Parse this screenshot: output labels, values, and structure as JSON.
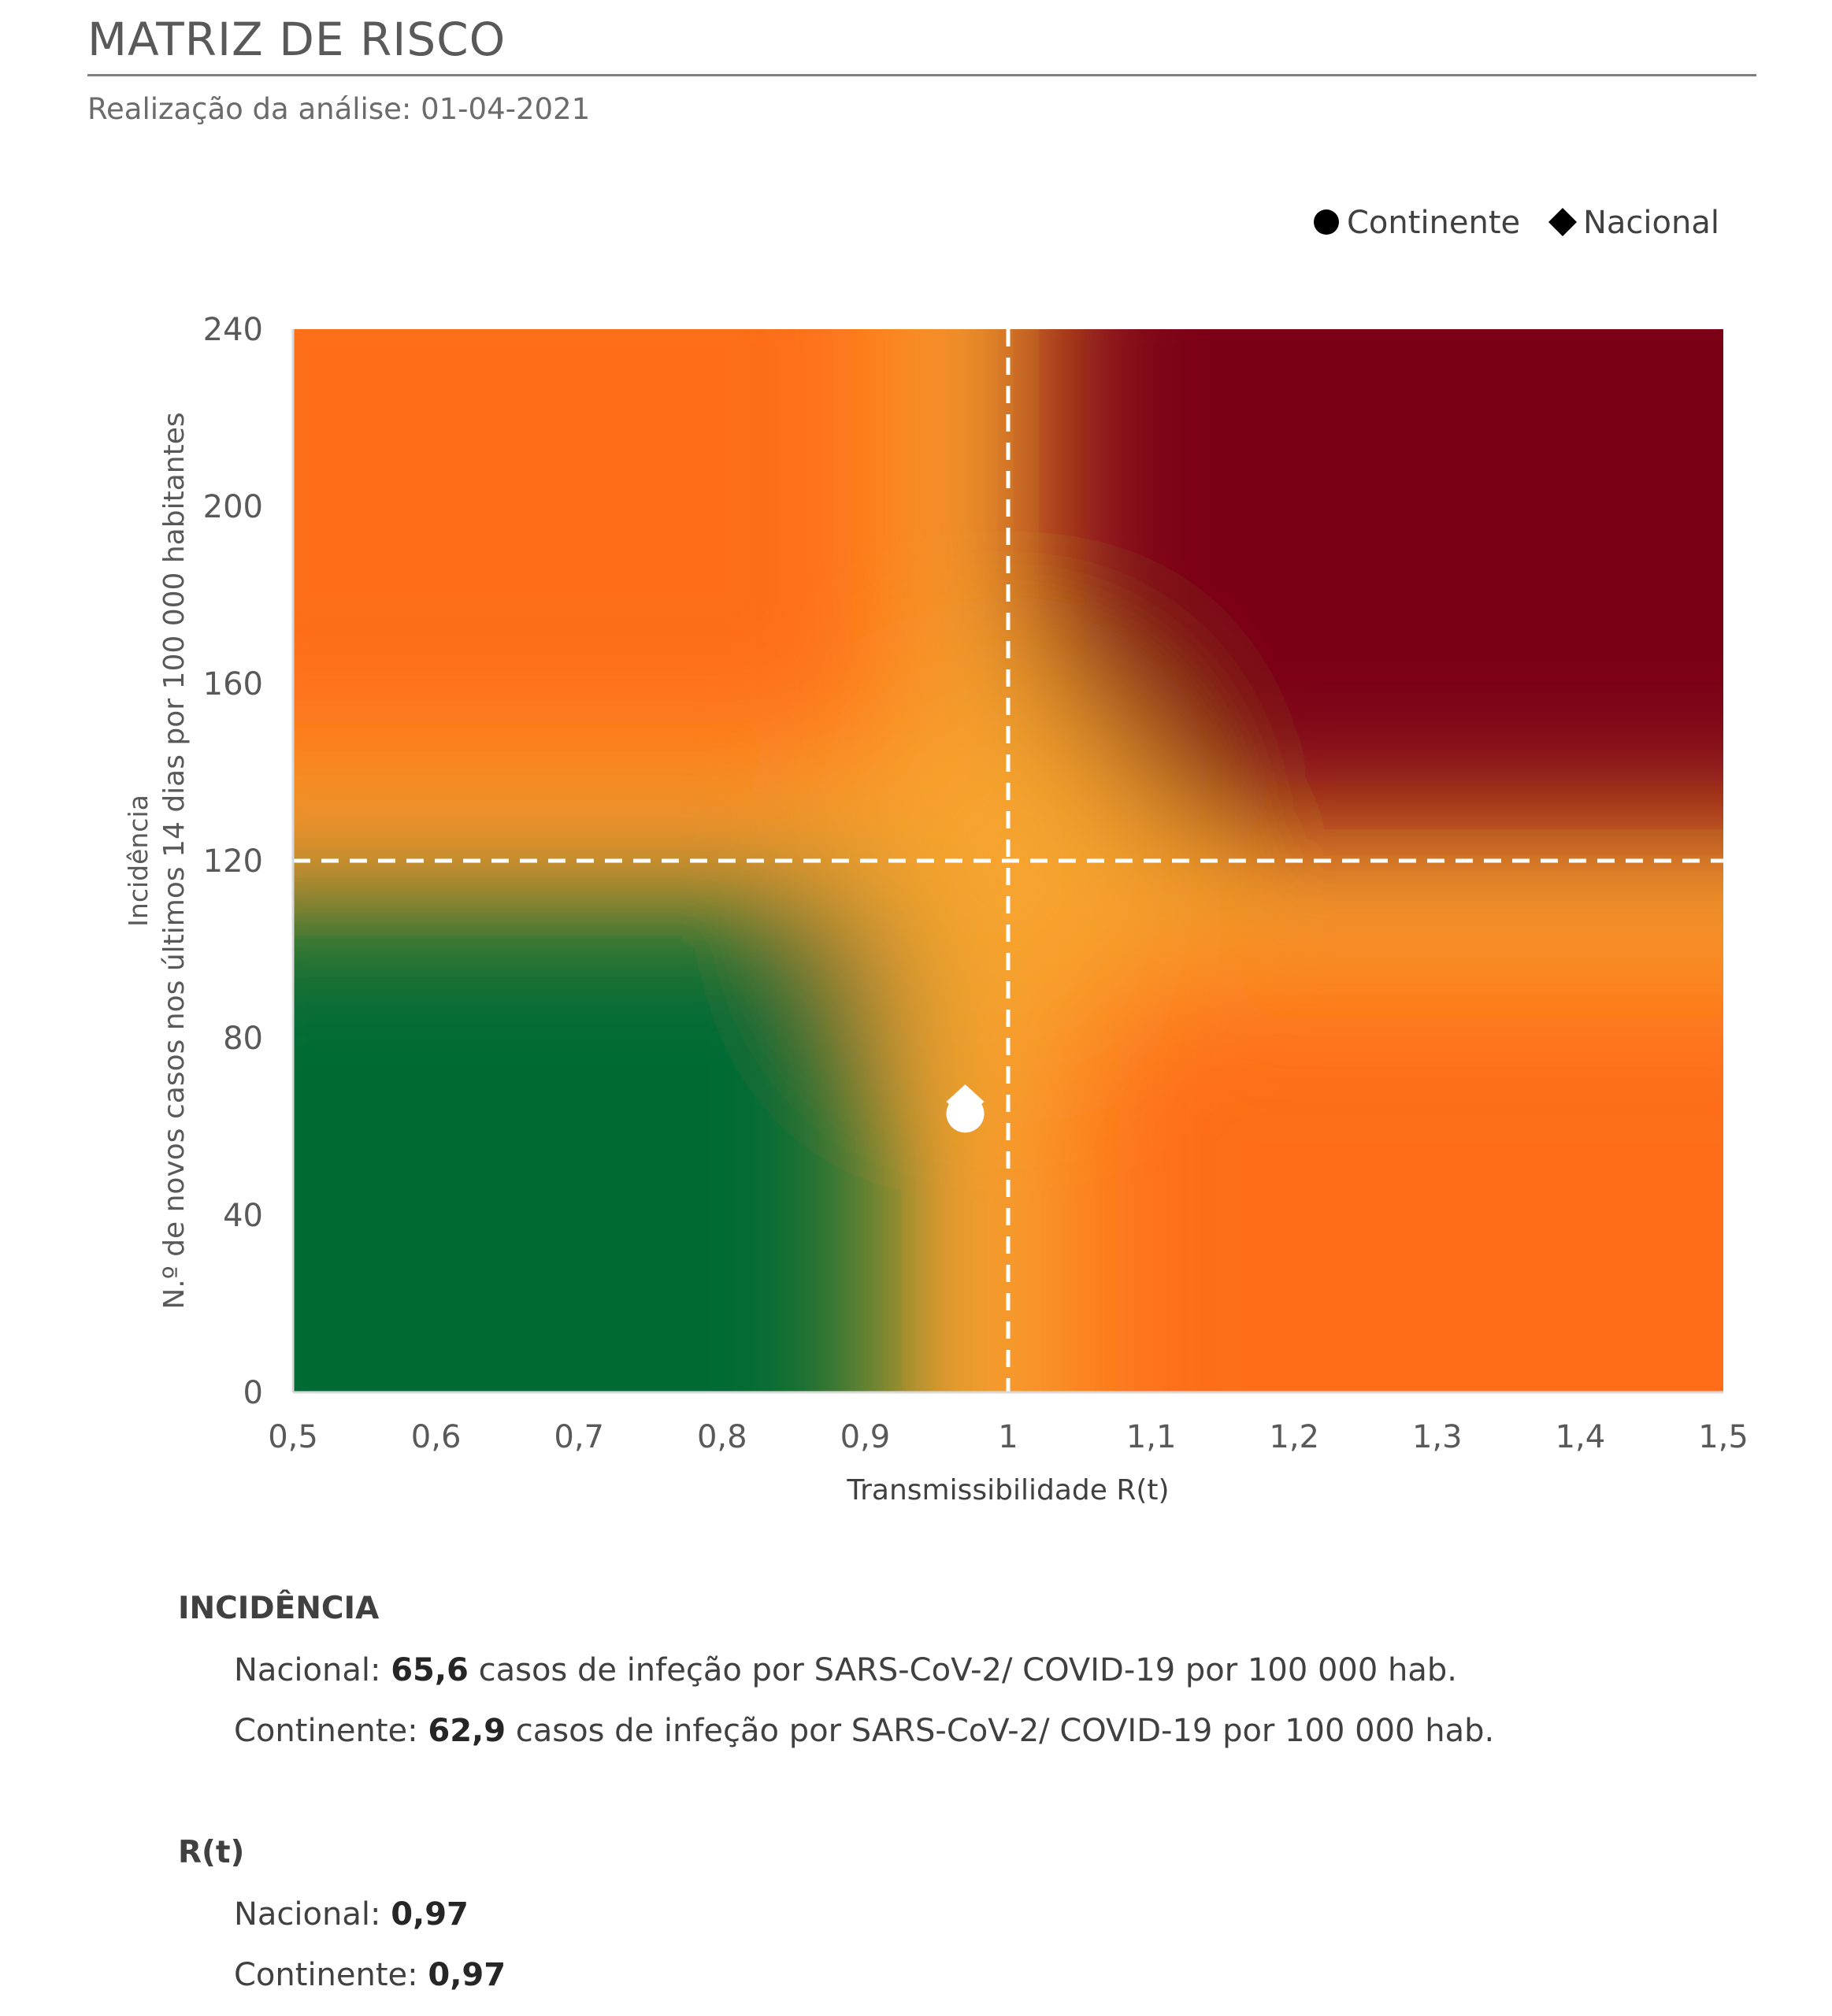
{
  "header": {
    "title": "MATRIZ DE RISCO",
    "subtitle": "Realização da análise: 01-04-2021"
  },
  "chart_data": {
    "type": "scatter",
    "xlabel": "Transmissibilidade R(t)",
    "ylabel_lines": [
      "Incidência",
      "N.º de novos casos nos últimos 14 dias por 100 000 habitantes"
    ],
    "xlim": [
      0.5,
      1.5
    ],
    "ylim": [
      0,
      240
    ],
    "x_ticks": [
      "0,5",
      "0,6",
      "0,7",
      "0,8",
      "0,9",
      "1",
      "1,1",
      "1,2",
      "1,3",
      "1,4",
      "1,5"
    ],
    "y_ticks": [
      "0",
      "40",
      "80",
      "120",
      "160",
      "200",
      "240"
    ],
    "thresholds": {
      "x": 1,
      "y": 120
    },
    "legend_position": "top-right",
    "series": [
      {
        "name": "Continente",
        "marker": "circle",
        "x": 0.97,
        "y": 62.9
      },
      {
        "name": "Nacional",
        "marker": "diamond",
        "x": 0.97,
        "y": 65.6
      }
    ],
    "colors": {
      "green": "#006b35",
      "yellow": "#f7a42d",
      "orange": "#ff6a13",
      "darkred": "#7a0018",
      "marker": "#ffffff",
      "threshold": "#ffffff",
      "legend_marker": "#000000"
    }
  },
  "incidencia": {
    "heading": "INCIDÊNCIA",
    "nacional_label": "Nacional: ",
    "nacional_value": "65,6",
    "nacional_text": " casos de infeção por SARS-CoV-2/ COVID-19 por 100 000 hab.",
    "continente_label": "Continente: ",
    "continente_value": "62,9",
    "continente_text": " casos de infeção por SARS-CoV-2/ COVID-19 por 100 000 hab."
  },
  "rt": {
    "heading": "R(t)",
    "nacional_label": "Nacional: ",
    "nacional_value": "0,97",
    "continente_label": "Continente: ",
    "continente_value": "0,97"
  }
}
